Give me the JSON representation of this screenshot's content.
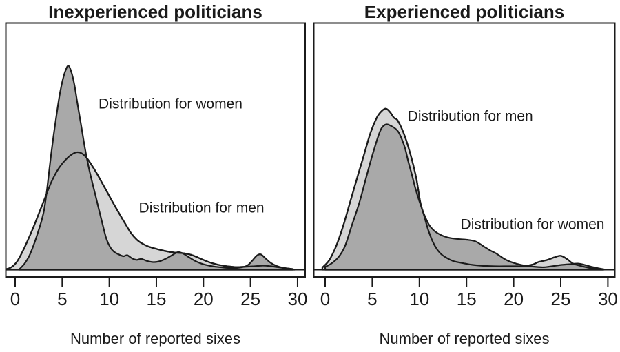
{
  "figure": {
    "background": "#ffffff",
    "stroke_color": "#1b1b1b",
    "fill_light": "#d6d6d6",
    "fill_dark": "#a9a9a9"
  },
  "chart_data": [
    {
      "type": "area",
      "subtype": "kernel-density",
      "title": "Inexperienced politicians",
      "xlabel": "Number of reported sixes",
      "ylabel": "",
      "xlim": [
        0,
        30
      ],
      "xticks": [
        0,
        5,
        10,
        15,
        20,
        25,
        30
      ],
      "grid": false,
      "legend_position": "direct-labels",
      "annotations": [
        {
          "text": "Distribution for women",
          "x": 16.5,
          "y": 0.79,
          "series": "women"
        },
        {
          "text": "Distribution for men",
          "x": 19.8,
          "y": 0.28,
          "series": "men"
        }
      ],
      "series": [
        {
          "name": "Distribution for men",
          "role": "men",
          "fill": "#d6d6d6",
          "points": [
            [
              -1.0,
              0.002
            ],
            [
              -0.4,
              0.012
            ],
            [
              0.2,
              0.04
            ],
            [
              0.8,
              0.09
            ],
            [
              1.4,
              0.15
            ],
            [
              2.0,
              0.215
            ],
            [
              2.6,
              0.285
            ],
            [
              3.2,
              0.355
            ],
            [
              3.8,
              0.425
            ],
            [
              4.4,
              0.48
            ],
            [
              5.0,
              0.52
            ],
            [
              5.6,
              0.55
            ],
            [
              6.1,
              0.568
            ],
            [
              6.6,
              0.576
            ],
            [
              7.1,
              0.57
            ],
            [
              7.6,
              0.548
            ],
            [
              8.1,
              0.515
            ],
            [
              8.7,
              0.47
            ],
            [
              9.3,
              0.42
            ],
            [
              9.9,
              0.37
            ],
            [
              10.5,
              0.32
            ],
            [
              11.1,
              0.272
            ],
            [
              11.7,
              0.225
            ],
            [
              12.3,
              0.18
            ],
            [
              12.9,
              0.148
            ],
            [
              13.5,
              0.128
            ],
            [
              14.2,
              0.113
            ],
            [
              15.0,
              0.102
            ],
            [
              15.8,
              0.093
            ],
            [
              16.6,
              0.086
            ],
            [
              17.3,
              0.082
            ],
            [
              18.0,
              0.08
            ],
            [
              18.7,
              0.073
            ],
            [
              19.4,
              0.06
            ],
            [
              20.1,
              0.046
            ],
            [
              20.8,
              0.034
            ],
            [
              21.6,
              0.024
            ],
            [
              22.5,
              0.017
            ],
            [
              23.5,
              0.013
            ],
            [
              24.5,
              0.015
            ],
            [
              25.4,
              0.017
            ],
            [
              26.2,
              0.02
            ],
            [
              27.0,
              0.018
            ],
            [
              27.8,
              0.013
            ],
            [
              28.7,
              0.007
            ],
            [
              29.5,
              0.003
            ]
          ]
        },
        {
          "name": "Distribution for women",
          "role": "women",
          "fill": "#a9a9a9",
          "points": [
            [
              0.4,
              0.0
            ],
            [
              1.0,
              0.03
            ],
            [
              1.5,
              0.068
            ],
            [
              2.0,
              0.125
            ],
            [
              2.4,
              0.18
            ],
            [
              2.8,
              0.24
            ],
            [
              3.1,
              0.3
            ],
            [
              3.4,
              0.4
            ],
            [
              3.7,
              0.52
            ],
            [
              4.0,
              0.63
            ],
            [
              4.3,
              0.73
            ],
            [
              4.7,
              0.85
            ],
            [
              5.0,
              0.92
            ],
            [
              5.3,
              0.97
            ],
            [
              5.65,
              1.0
            ],
            [
              6.0,
              0.965
            ],
            [
              6.3,
              0.905
            ],
            [
              6.6,
              0.82
            ],
            [
              7.0,
              0.71
            ],
            [
              7.4,
              0.6
            ],
            [
              7.8,
              0.505
            ],
            [
              8.1,
              0.445
            ],
            [
              8.5,
              0.37
            ],
            [
              8.9,
              0.295
            ],
            [
              9.3,
              0.22
            ],
            [
              9.7,
              0.15
            ],
            [
              10.1,
              0.11
            ],
            [
              10.5,
              0.088
            ],
            [
              11.0,
              0.075
            ],
            [
              11.5,
              0.066
            ],
            [
              11.9,
              0.071
            ],
            [
              12.4,
              0.056
            ],
            [
              12.9,
              0.048
            ],
            [
              13.4,
              0.053
            ],
            [
              14.0,
              0.043
            ],
            [
              14.7,
              0.037
            ],
            [
              15.4,
              0.042
            ],
            [
              16.1,
              0.056
            ],
            [
              16.7,
              0.072
            ],
            [
              17.3,
              0.086
            ],
            [
              17.8,
              0.08
            ],
            [
              18.4,
              0.063
            ],
            [
              19.0,
              0.046
            ],
            [
              19.6,
              0.033
            ],
            [
              20.3,
              0.023
            ],
            [
              21.1,
              0.016
            ],
            [
              22.0,
              0.011
            ],
            [
              23.0,
              0.008
            ],
            [
              24.0,
              0.011
            ],
            [
              24.7,
              0.022
            ],
            [
              25.2,
              0.045
            ],
            [
              25.7,
              0.07
            ],
            [
              26.1,
              0.075
            ],
            [
              26.6,
              0.055
            ],
            [
              27.1,
              0.035
            ],
            [
              27.7,
              0.02
            ],
            [
              28.4,
              0.01
            ],
            [
              29.2,
              0.004
            ],
            [
              29.7,
              0.001
            ]
          ]
        }
      ]
    },
    {
      "type": "area",
      "subtype": "kernel-density",
      "title": "Experienced politicians",
      "xlabel": "Number of reported sixes",
      "ylabel": "",
      "xlim": [
        0,
        30
      ],
      "xticks": [
        0,
        5,
        10,
        15,
        20,
        25,
        30
      ],
      "grid": false,
      "legend_position": "direct-labels",
      "annotations": [
        {
          "text": "Distribution for men",
          "x": 15.4,
          "y": 0.73,
          "series": "men"
        },
        {
          "text": "Distribution for women",
          "x": 22.0,
          "y": 0.2,
          "series": "women"
        }
      ],
      "series": [
        {
          "name": "Distribution for men",
          "role": "men",
          "fill": "#d6d6d6",
          "points": [
            [
              -0.3,
              0.01
            ],
            [
              0.44,
              0.047
            ],
            [
              1.16,
              0.115
            ],
            [
              1.9,
              0.213
            ],
            [
              2.6,
              0.324
            ],
            [
              3.35,
              0.443
            ],
            [
              4.1,
              0.56
            ],
            [
              4.8,
              0.67
            ],
            [
              5.5,
              0.747
            ],
            [
              6.0,
              0.778
            ],
            [
              6.45,
              0.79
            ],
            [
              6.9,
              0.772
            ],
            [
              7.3,
              0.745
            ],
            [
              7.72,
              0.73
            ],
            [
              8.45,
              0.655
            ],
            [
              9.18,
              0.544
            ],
            [
              9.69,
              0.443
            ],
            [
              10.1,
              0.33
            ],
            [
              10.5,
              0.265
            ],
            [
              10.9,
              0.2
            ],
            [
              11.4,
              0.139
            ],
            [
              11.9,
              0.098
            ],
            [
              12.45,
              0.071
            ],
            [
              13.5,
              0.044
            ],
            [
              14.4,
              0.034
            ],
            [
              15.6,
              0.024
            ],
            [
              16.8,
              0.019
            ],
            [
              18.0,
              0.017
            ],
            [
              19.5,
              0.017
            ],
            [
              21.0,
              0.018
            ],
            [
              22.0,
              0.025
            ],
            [
              22.6,
              0.037
            ],
            [
              23.5,
              0.047
            ],
            [
              24.3,
              0.06
            ],
            [
              25.0,
              0.068
            ],
            [
              25.7,
              0.051
            ],
            [
              26.3,
              0.03
            ],
            [
              27.0,
              0.02
            ],
            [
              27.9,
              0.01
            ],
            [
              28.8,
              0.004
            ],
            [
              29.5,
              0.001
            ]
          ]
        },
        {
          "name": "Distribution for women",
          "role": "women",
          "fill": "#a9a9a9",
          "points": [
            [
              0.0,
              0.014
            ],
            [
              0.65,
              0.03
            ],
            [
              1.4,
              0.061
            ],
            [
              2.1,
              0.115
            ],
            [
              2.8,
              0.213
            ],
            [
              3.6,
              0.324
            ],
            [
              4.3,
              0.443
            ],
            [
              5.0,
              0.56
            ],
            [
              5.6,
              0.65
            ],
            [
              6.0,
              0.695
            ],
            [
              6.5,
              0.713
            ],
            [
              7.0,
              0.705
            ],
            [
              7.5,
              0.69
            ],
            [
              7.9,
              0.665
            ],
            [
              8.45,
              0.6
            ],
            [
              8.8,
              0.534
            ],
            [
              9.2,
              0.466
            ],
            [
              9.6,
              0.395
            ],
            [
              10.0,
              0.335
            ],
            [
              10.5,
              0.272
            ],
            [
              11.0,
              0.222
            ],
            [
              11.6,
              0.19
            ],
            [
              12.3,
              0.17
            ],
            [
              13.2,
              0.156
            ],
            [
              14.2,
              0.15
            ],
            [
              15.2,
              0.146
            ],
            [
              16.0,
              0.138
            ],
            [
              16.8,
              0.115
            ],
            [
              17.5,
              0.095
            ],
            [
              18.2,
              0.078
            ],
            [
              18.9,
              0.056
            ],
            [
              19.6,
              0.04
            ],
            [
              20.4,
              0.028
            ],
            [
              21.2,
              0.02
            ],
            [
              22.2,
              0.015
            ],
            [
              23.2,
              0.012
            ],
            [
              24.2,
              0.018
            ],
            [
              25.2,
              0.024
            ],
            [
              26.0,
              0.027
            ],
            [
              26.8,
              0.03
            ],
            [
              27.5,
              0.024
            ],
            [
              28.2,
              0.015
            ],
            [
              29.0,
              0.007
            ],
            [
              29.6,
              0.002
            ]
          ]
        }
      ]
    }
  ]
}
